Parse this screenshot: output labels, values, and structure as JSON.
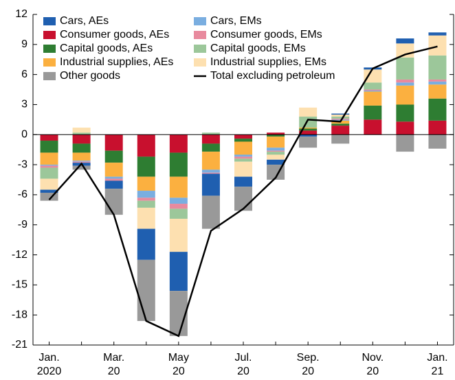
{
  "chart_data": {
    "type": "bar",
    "categories": [
      "Jan.\n2020",
      null,
      "Mar.\n20",
      null,
      "May\n20",
      null,
      "Jul.\n20",
      null,
      "Sep.\n20",
      null,
      "Nov.\n20",
      null,
      "Jan.\n21"
    ],
    "ylim": [
      -21,
      12
    ],
    "yticks": [
      -21,
      -18,
      -15,
      -12,
      -9,
      -6,
      -3,
      0,
      3,
      6,
      9,
      12
    ],
    "series": [
      {
        "name": "Cars, AEs",
        "color": "#1f5fb0",
        "values": [
          -0.3,
          -0.3,
          -0.8,
          -3.1,
          -3.9,
          -2.2,
          -1.0,
          -0.5,
          -0.2,
          0.1,
          0.2,
          0.5,
          0.3
        ]
      },
      {
        "name": "Consumer goods, AEs",
        "color": "#c8102e",
        "values": [
          -0.6,
          -0.9,
          -1.6,
          -2.2,
          -1.8,
          -0.9,
          -0.4,
          0.2,
          0.4,
          0.9,
          1.5,
          1.3,
          1.4
        ]
      },
      {
        "name": "Capital goods, AEs",
        "color": "#2e7d32",
        "values": [
          -1.2,
          -0.9,
          -1.2,
          -2.0,
          -2.4,
          -0.8,
          -0.3,
          -0.2,
          0.2,
          0.2,
          1.4,
          1.7,
          2.2
        ]
      },
      {
        "name": "Industrial supplies, AEs",
        "color": "#fbb040",
        "values": [
          -1.2,
          -0.8,
          -1.4,
          -1.4,
          -2.1,
          -1.8,
          -1.3,
          -1.1,
          0.1,
          0.3,
          1.4,
          1.9,
          1.4
        ]
      },
      {
        "name": "Other goods",
        "color": "#999999",
        "values": [
          -0.8,
          -0.4,
          -2.6,
          -6.1,
          -4.5,
          -3.3,
          -2.4,
          -1.5,
          -1.1,
          -0.9,
          0,
          -1.7,
          -1.4
        ]
      },
      {
        "name": "Cars, EMs",
        "color": "#7aaee0",
        "values": [
          -0.1,
          -0.1,
          -0.2,
          -0.7,
          -0.6,
          -0.3,
          -0.2,
          -0.3,
          0,
          0.1,
          0.1,
          0.3,
          0.3
        ]
      },
      {
        "name": "Consumer goods, EMs",
        "color": "#e88a9e",
        "values": [
          -0.2,
          -0.1,
          -0.2,
          -0.3,
          -0.5,
          -0.1,
          -0.2,
          -0.1,
          0,
          0.1,
          0.1,
          0.3,
          0.2
        ]
      },
      {
        "name": "Capital goods, EMs",
        "color": "#9cc79a",
        "values": [
          -1.1,
          0.2,
          0,
          -0.7,
          -1.0,
          0.2,
          -0.3,
          -0.3,
          1.1,
          0.2,
          0.7,
          2.2,
          2.4
        ]
      },
      {
        "name": "Industrial supplies, EMs",
        "color": "#fde0b0",
        "values": [
          -1.1,
          0.5,
          0,
          -2.1,
          -3.3,
          0,
          -1.5,
          -0.5,
          0.9,
          0.2,
          1.3,
          1.4,
          2.0
        ]
      },
      {
        "name": "Total excluding petroleum",
        "type": "line",
        "color": "#000000",
        "values": [
          -6.5,
          -2.9,
          -8.0,
          -18.6,
          -20.1,
          -9.6,
          -7.4,
          -4.3,
          1.5,
          1.3,
          6.6,
          8.0,
          8.8
        ]
      }
    ]
  }
}
